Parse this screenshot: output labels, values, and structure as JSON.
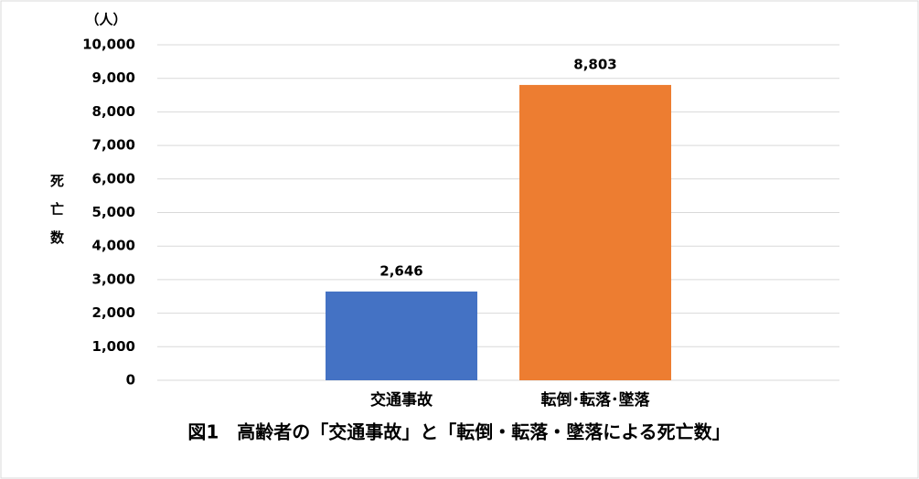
{
  "chart_data": {
    "type": "bar",
    "title": "図1　高齢者の「交通事故」と「転倒・転落・墜落による死亡数」",
    "y_label": "死亡数",
    "y_unit": "（人）",
    "categories": [
      "交通事故",
      "転倒･転落･墜落"
    ],
    "values": [
      2646,
      8803
    ],
    "value_labels": [
      "2,646",
      "8,803"
    ],
    "colors": [
      "#4472c4",
      "#ed7d31"
    ],
    "ylim": [
      0,
      10000
    ],
    "yticks": [
      0,
      {
        "value": 1000,
        "label": "1,000"
      },
      {
        "value": 2000,
        "label": "2,000"
      },
      {
        "value": 3000,
        "label": "3,000"
      },
      {
        "value": 4000,
        "label": "4,000"
      },
      {
        "value": 5000,
        "label": "5,000"
      },
      {
        "value": 6000,
        "label": "6,000"
      },
      {
        "value": 7000,
        "label": "7,000"
      },
      {
        "value": 8000,
        "label": "8,000"
      },
      {
        "value": 9000,
        "label": "9,000"
      },
      {
        "value": 10000,
        "label": "10,000"
      }
    ],
    "grid": true
  }
}
